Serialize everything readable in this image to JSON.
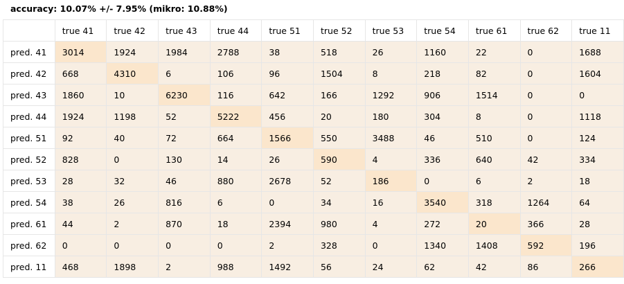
{
  "header": {
    "text": "accuracy: 10.07% +/- 7.95% (mikro: 10.88%)"
  },
  "colors": {
    "cell_bg": "#f8eee2",
    "diagonal_bg": "#fbe6cc",
    "border": "#e6e6e6"
  },
  "columns": [
    "true 41",
    "true 42",
    "true 43",
    "true 44",
    "true 51",
    "true 52",
    "true 53",
    "true 54",
    "true 61",
    "true 62",
    "true 11"
  ],
  "rows": [
    {
      "label": "pred. 41",
      "values": [
        "3014",
        "1924",
        "1984",
        "2788",
        "38",
        "518",
        "26",
        "1160",
        "22",
        "0",
        "1688"
      ]
    },
    {
      "label": "pred. 42",
      "values": [
        "668",
        "4310",
        "6",
        "106",
        "96",
        "1504",
        "8",
        "218",
        "82",
        "0",
        "1604"
      ]
    },
    {
      "label": "pred. 43",
      "values": [
        "1860",
        "10",
        "6230",
        "116",
        "642",
        "166",
        "1292",
        "906",
        "1514",
        "0",
        "0"
      ]
    },
    {
      "label": "pred. 44",
      "values": [
        "1924",
        "1198",
        "52",
        "5222",
        "456",
        "20",
        "180",
        "304",
        "8",
        "0",
        "1118"
      ]
    },
    {
      "label": "pred. 51",
      "values": [
        "92",
        "40",
        "72",
        "664",
        "1566",
        "550",
        "3488",
        "46",
        "510",
        "0",
        "124"
      ]
    },
    {
      "label": "pred. 52",
      "values": [
        "828",
        "0",
        "130",
        "14",
        "26",
        "590",
        "4",
        "336",
        "640",
        "42",
        "334"
      ]
    },
    {
      "label": "pred. 53",
      "values": [
        "28",
        "32",
        "46",
        "880",
        "2678",
        "52",
        "186",
        "0",
        "6",
        "2",
        "18"
      ]
    },
    {
      "label": "pred. 54",
      "values": [
        "38",
        "26",
        "816",
        "6",
        "0",
        "34",
        "16",
        "3540",
        "318",
        "1264",
        "64"
      ]
    },
    {
      "label": "pred. 61",
      "values": [
        "44",
        "2",
        "870",
        "18",
        "2394",
        "980",
        "4",
        "272",
        "20",
        "366",
        "28"
      ]
    },
    {
      "label": "pred. 62",
      "values": [
        "0",
        "0",
        "0",
        "0",
        "2",
        "328",
        "0",
        "1340",
        "1408",
        "592",
        "196"
      ]
    },
    {
      "label": "pred. 11",
      "values": [
        "468",
        "1898",
        "2",
        "988",
        "1492",
        "56",
        "24",
        "62",
        "42",
        "86",
        "266"
      ]
    }
  ]
}
